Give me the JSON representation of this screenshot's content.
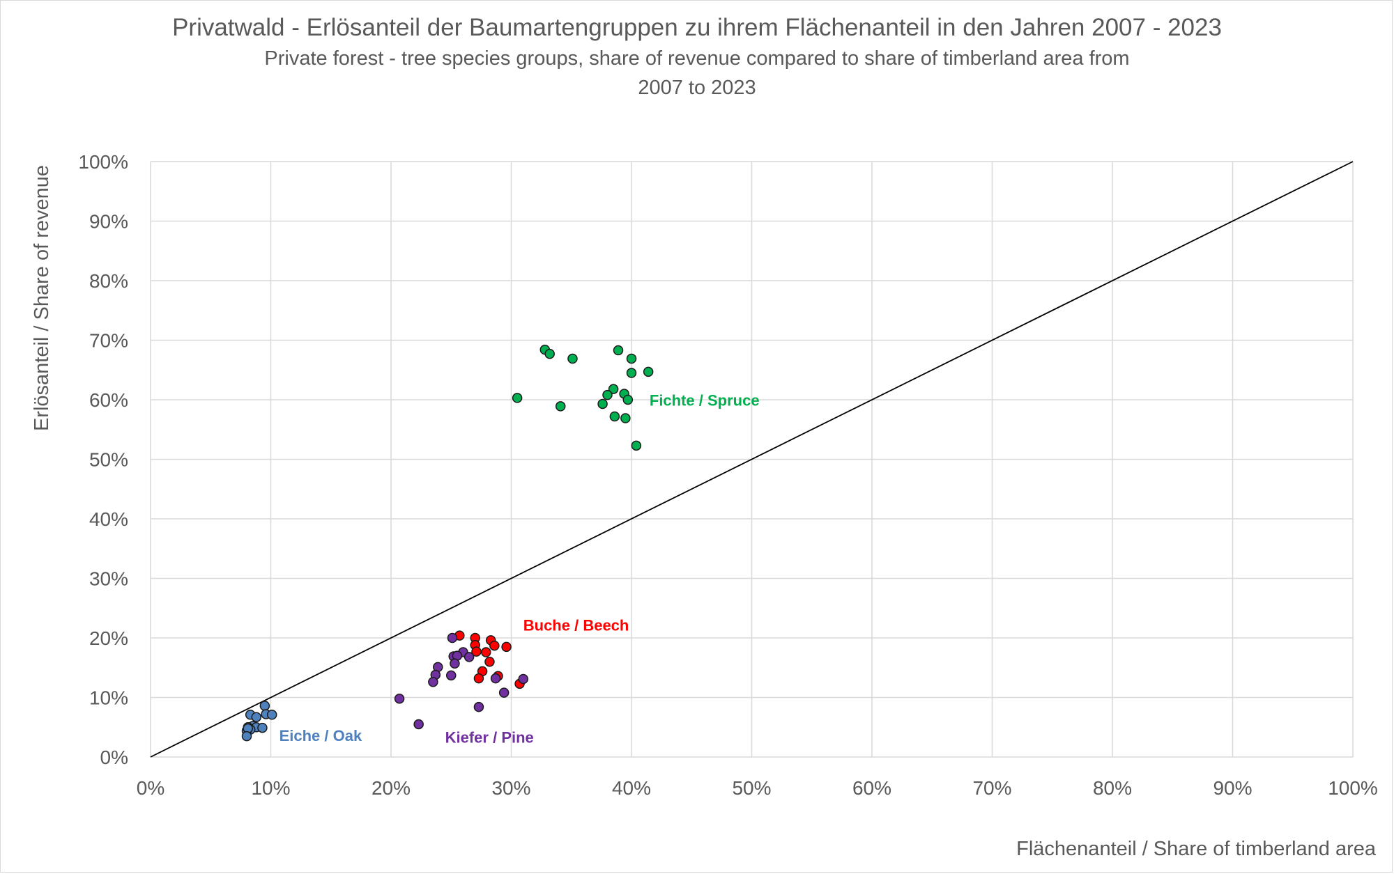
{
  "chart_data": {
    "type": "scatter",
    "title": "Privatwald - Erlösanteil der Baumartengruppen zu ihrem Flächenanteil in den Jahren 2007 - 2023",
    "subtitle_line1": "Private forest - tree species groups, share of revenue compared to share of timberland area from",
    "subtitle_line2": "2007 to 2023",
    "xlabel": "Flächenanteil / Share of timberland area",
    "ylabel": "Erlösanteil / Share of revenue",
    "xlim": [
      0,
      100
    ],
    "ylim": [
      0,
      100
    ],
    "x_ticks": [
      "0%",
      "10%",
      "20%",
      "30%",
      "40%",
      "50%",
      "60%",
      "70%",
      "80%",
      "90%",
      "100%"
    ],
    "y_ticks": [
      "0%",
      "10%",
      "20%",
      "30%",
      "40%",
      "50%",
      "60%",
      "70%",
      "80%",
      "90%",
      "100%"
    ],
    "grid": true,
    "reference_line": {
      "from": [
        0,
        0
      ],
      "to": [
        100,
        100
      ],
      "color": "#000000"
    },
    "series": [
      {
        "name": "Fichte / Spruce",
        "color": "#00b050",
        "x": [
          32.8,
          33.2,
          35.1,
          38.9,
          40.0,
          40.0,
          41.4,
          30.5,
          38.5,
          38.0,
          39.4,
          39.7,
          37.6,
          34.1,
          38.6,
          39.5,
          40.4
        ],
        "y": [
          68.4,
          67.7,
          66.9,
          68.3,
          66.9,
          64.5,
          64.7,
          60.3,
          61.8,
          60.8,
          61.0,
          60.0,
          59.3,
          58.9,
          57.2,
          56.9,
          52.3
        ]
      },
      {
        "name": "Buche / Beech",
        "color": "#ff0000",
        "x": [
          25.7,
          27.0,
          28.3,
          27.0,
          28.6,
          29.6,
          27.1,
          27.9,
          28.2,
          28.9,
          27.6,
          27.3,
          30.7
        ],
        "y": [
          20.4,
          20.0,
          19.6,
          18.8,
          18.7,
          18.5,
          17.7,
          17.6,
          16.0,
          13.6,
          14.4,
          13.2,
          12.3
        ]
      },
      {
        "name": "Kiefer / Pine",
        "color": "#7030a0",
        "x": [
          25.1,
          26.0,
          25.2,
          25.5,
          26.5,
          25.3,
          23.9,
          23.7,
          25.0,
          23.5,
          28.7,
          31.0,
          29.4,
          20.7,
          27.3,
          22.3
        ],
        "y": [
          20.0,
          17.6,
          16.9,
          17.0,
          16.8,
          15.7,
          15.1,
          13.8,
          13.7,
          12.6,
          13.2,
          13.1,
          10.8,
          9.8,
          8.4,
          5.5
        ]
      },
      {
        "name": "Eiche / Oak",
        "color": "#4f81bd",
        "x": [
          9.5,
          8.3,
          9.6,
          8.8,
          10.1,
          8.5,
          8.1,
          8.8,
          9.3,
          8.3,
          8.0,
          8.1,
          8.0
        ],
        "y": [
          8.6,
          7.1,
          7.2,
          6.7,
          7.1,
          5.2,
          5.0,
          5.0,
          4.9,
          4.6,
          4.4,
          4.8,
          3.5
        ]
      }
    ],
    "cluster_labels": [
      {
        "text": "Fichte / Spruce",
        "color": "#00b050",
        "x": 41.5,
        "y": 59
      },
      {
        "text": "Buche / Beech",
        "color": "#ff0000",
        "x": 31.0,
        "y": 21.2
      },
      {
        "text": "Kiefer / Pine",
        "color": "#7030a0",
        "x": 24.5,
        "y": 2.4
      },
      {
        "text": "Eiche / Oak",
        "color": "#4f81bd",
        "x": 10.7,
        "y": 2.7
      }
    ]
  }
}
